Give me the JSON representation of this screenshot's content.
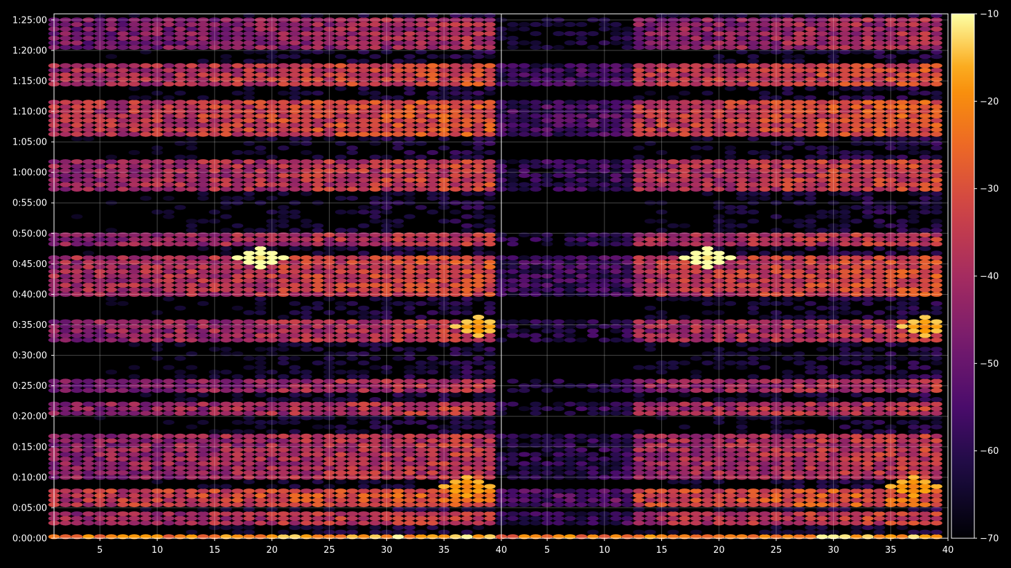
{
  "chart_data": {
    "type": "heatmap",
    "colormap": "inferno",
    "background": "#000000",
    "grid": true,
    "panels": [
      {
        "name": "",
        "xlim": [
          1,
          40
        ],
        "x_ticks": [
          "5",
          "10",
          "15",
          "20",
          "25",
          "30",
          "35",
          "40"
        ]
      },
      {
        "name": "",
        "xlim": [
          1,
          40
        ],
        "x_ticks": [
          "5",
          "10",
          "15",
          "20",
          "25",
          "30",
          "35",
          "40"
        ]
      }
    ],
    "y_axis": {
      "unit": "time (h:mm:ss)",
      "ylim_seconds": [
        0,
        5160
      ],
      "tick_labels": [
        "0:00:00",
        "0:05:00",
        "0:10:00",
        "0:15:00",
        "0:20:00",
        "0:25:00",
        "0:30:00",
        "0:35:00",
        "0:40:00",
        "0:45:00",
        "0:50:00",
        "0:55:00",
        "1:00:00",
        "1:05:00",
        "1:10:00",
        "1:15:00",
        "1:20:00",
        "1:25:00"
      ]
    },
    "x_range": [
      1,
      39
    ],
    "time_bins_seconds": 90,
    "colorbar": {
      "range": [
        -70,
        -10
      ],
      "tick_labels": [
        "-10",
        "-20",
        "-30",
        "-40",
        "-50",
        "-60",
        "-70"
      ]
    },
    "value_bands": [
      {
        "time_range": [
          "0:00:00",
          "0:00:30"
        ],
        "level_dB": -20
      },
      {
        "time_range": [
          "0:02:00",
          "0:04:00"
        ],
        "level_dB": -38
      },
      {
        "time_range": [
          "0:05:00",
          "0:08:00"
        ],
        "level_dB": -32
      },
      {
        "time_range": [
          "0:10:00",
          "0:17:00"
        ],
        "level_dB": -40
      },
      {
        "time_range": [
          "0:20:00",
          "0:22:00"
        ],
        "level_dB": -40
      },
      {
        "time_range": [
          "0:24:00",
          "0:26:00"
        ],
        "level_dB": -42
      },
      {
        "time_range": [
          "0:32:00",
          "0:36:00"
        ],
        "level_dB": -40
      },
      {
        "time_range": [
          "0:40:00",
          "0:46:00"
        ],
        "level_dB": -36
      },
      {
        "time_range": [
          "0:48:00",
          "0:50:00"
        ],
        "level_dB": -40
      },
      {
        "time_range": [
          "0:57:00",
          "1:02:00"
        ],
        "level_dB": -38
      },
      {
        "time_range": [
          "1:06:00",
          "1:12:00"
        ],
        "level_dB": -34
      },
      {
        "time_range": [
          "1:14:00",
          "1:18:00"
        ],
        "level_dB": -36
      },
      {
        "time_range": [
          "1:20:00",
          "1:25:00"
        ],
        "level_dB": -44
      }
    ],
    "peaks": [
      {
        "x": 19,
        "time": "0:46:00",
        "level_dB": -12
      },
      {
        "x": 38,
        "time": "0:34:40",
        "level_dB": -20
      },
      {
        "x": 37,
        "time": "0:08:20",
        "level_dB": -22
      }
    ]
  }
}
